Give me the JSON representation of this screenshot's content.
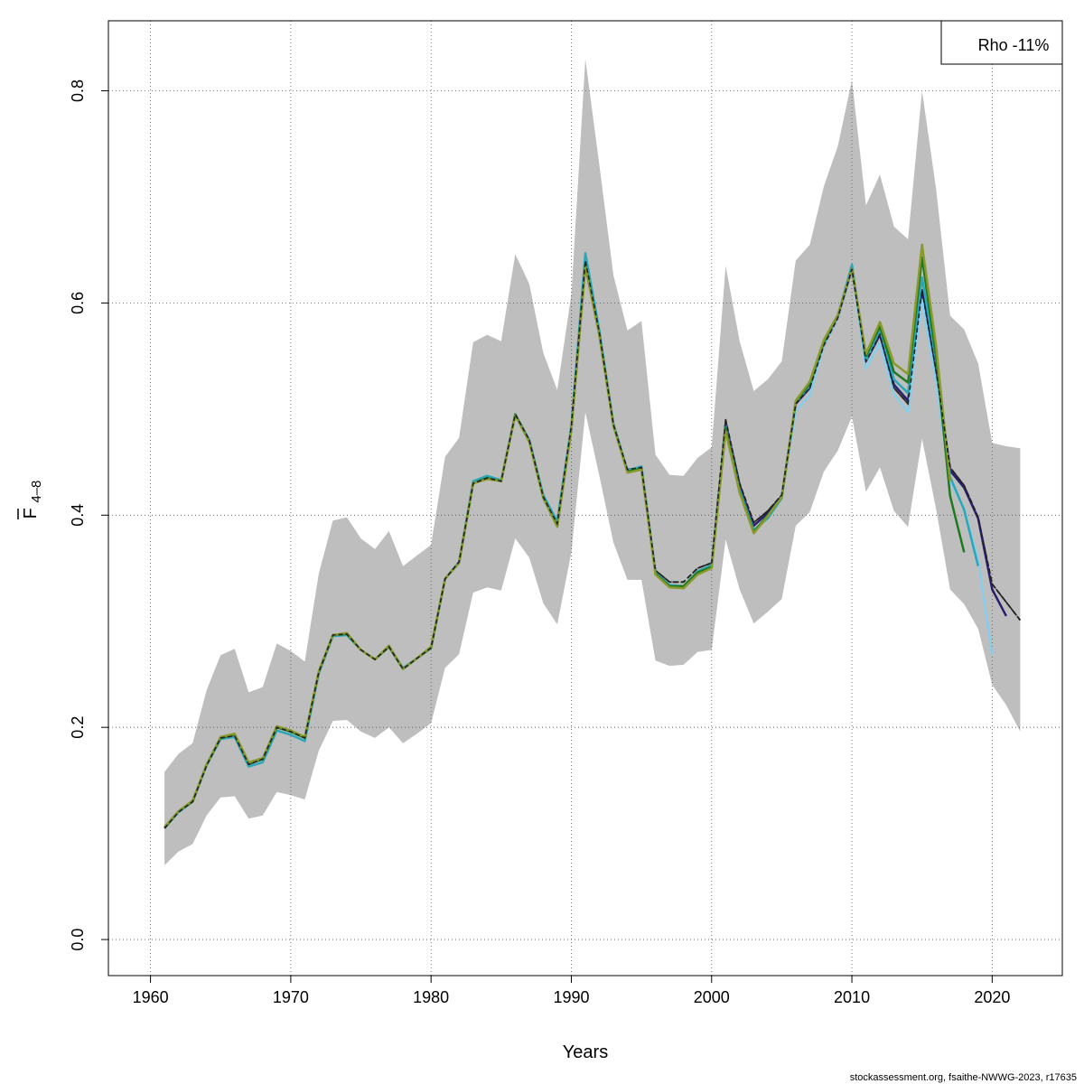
{
  "chart_data": {
    "type": "line",
    "xlabel": "Years",
    "ylabel": {
      "main": "F",
      "sub": "4–8"
    },
    "xlim": [
      1957,
      2025
    ],
    "ylim": [
      -0.034,
      0.866
    ],
    "x_ticks": [
      1960,
      1970,
      1980,
      1990,
      2000,
      2010,
      2020
    ],
    "y_ticks": [
      0.0,
      0.2,
      0.4,
      0.6,
      0.8
    ],
    "x_tick_labels": [
      "1960",
      "1970",
      "1980",
      "1990",
      "2000",
      "2010",
      "2020"
    ],
    "y_tick_labels": [
      "0.0",
      "0.2",
      "0.4",
      "0.6",
      "0.8"
    ],
    "grid": true,
    "legend": {
      "position": "top-right",
      "text": "Rho -11%"
    },
    "footer": "stockassessment.org, fsaithe-NWWG-2023, r17635",
    "band_color": "#bebebe",
    "confidence_band": {
      "x": [
        1961,
        1962,
        1963,
        1964,
        1965,
        1966,
        1967,
        1968,
        1969,
        1970,
        1971,
        1972,
        1973,
        1974,
        1975,
        1976,
        1977,
        1978,
        1979,
        1980,
        1981,
        1982,
        1983,
        1984,
        1985,
        1986,
        1987,
        1988,
        1989,
        1990,
        1991,
        1992,
        1993,
        1994,
        1995,
        1996,
        1997,
        1998,
        1999,
        2000,
        2001,
        2002,
        2003,
        2004,
        2005,
        2006,
        2007,
        2008,
        2009,
        2010,
        2011,
        2012,
        2013,
        2014,
        2015,
        2016,
        2017,
        2018,
        2019,
        2020,
        2021,
        2022
      ],
      "upper": [
        0.158,
        0.175,
        0.185,
        0.235,
        0.268,
        0.274,
        0.233,
        0.238,
        0.279,
        0.272,
        0.262,
        0.345,
        0.395,
        0.398,
        0.378,
        0.368,
        0.385,
        0.352,
        0.362,
        0.372,
        0.455,
        0.473,
        0.563,
        0.57,
        0.564,
        0.646,
        0.618,
        0.553,
        0.518,
        0.608,
        0.83,
        0.73,
        0.626,
        0.574,
        0.583,
        0.457,
        0.438,
        0.437,
        0.454,
        0.464,
        0.635,
        0.564,
        0.517,
        0.528,
        0.545,
        0.64,
        0.655,
        0.71,
        0.748,
        0.81,
        0.692,
        0.721,
        0.672,
        0.66,
        0.8,
        0.708,
        0.588,
        0.575,
        0.543,
        0.468,
        0.465,
        0.463
      ],
      "lower": [
        0.07,
        0.083,
        0.09,
        0.117,
        0.134,
        0.135,
        0.114,
        0.117,
        0.139,
        0.136,
        0.132,
        0.178,
        0.206,
        0.207,
        0.196,
        0.19,
        0.2,
        0.185,
        0.194,
        0.204,
        0.256,
        0.269,
        0.327,
        0.332,
        0.329,
        0.378,
        0.36,
        0.317,
        0.297,
        0.365,
        0.497,
        0.437,
        0.374,
        0.339,
        0.339,
        0.263,
        0.258,
        0.259,
        0.271,
        0.273,
        0.377,
        0.33,
        0.298,
        0.309,
        0.321,
        0.39,
        0.403,
        0.441,
        0.461,
        0.493,
        0.422,
        0.445,
        0.404,
        0.389,
        0.472,
        0.406,
        0.33,
        0.316,
        0.293,
        0.24,
        0.221,
        0.196
      ]
    },
    "series": [
      {
        "color": "#222222",
        "dashed": true,
        "x": [
          1961,
          1962,
          1963,
          1964,
          1965,
          1966,
          1967,
          1968,
          1969,
          1970,
          1971,
          1972,
          1973,
          1974,
          1975,
          1976,
          1977,
          1978,
          1979,
          1980,
          1981,
          1982,
          1983,
          1984,
          1985,
          1986,
          1987,
          1988,
          1989,
          1990,
          1991,
          1992,
          1993,
          1994,
          1995,
          1996,
          1997,
          1998,
          1999,
          2000,
          2001,
          2002,
          2003,
          2004,
          2005,
          2006,
          2007,
          2008,
          2009,
          2010,
          2011,
          2012,
          2013,
          2014,
          2015,
          2016,
          2017,
          2018,
          2019,
          2020,
          2021,
          2022
        ],
        "values": [
          0.105,
          0.12,
          0.13,
          0.164,
          0.19,
          0.192,
          0.165,
          0.17,
          0.2,
          0.196,
          0.19,
          0.252,
          0.287,
          0.288,
          0.273,
          0.264,
          0.276,
          0.255,
          0.265,
          0.275,
          0.34,
          0.356,
          0.43,
          0.435,
          0.432,
          0.495,
          0.471,
          0.417,
          0.392,
          0.484,
          0.64,
          0.572,
          0.485,
          0.443,
          0.445,
          0.348,
          0.337,
          0.337,
          0.35,
          0.355,
          0.49,
          0.43,
          0.393,
          0.404,
          0.419,
          0.505,
          0.52,
          0.56,
          0.586,
          0.632,
          0.545,
          0.57,
          0.52,
          0.505,
          0.612,
          0.536,
          0.445,
          0.428,
          0.398,
          0.335,
          0.318,
          0.301
        ]
      },
      {
        "color": "#2a1f6e",
        "dashed": false,
        "x": [
          2001,
          2002,
          2003,
          2004,
          2005,
          2006,
          2007,
          2008,
          2009,
          2010,
          2011,
          2012,
          2013,
          2014,
          2015,
          2016,
          2017,
          2018,
          2019,
          2020,
          2021
        ],
        "values": [
          0.487,
          0.428,
          0.39,
          0.402,
          0.418,
          0.505,
          0.52,
          0.56,
          0.586,
          0.632,
          0.545,
          0.57,
          0.523,
          0.508,
          0.612,
          0.538,
          0.442,
          0.426,
          0.397,
          0.33,
          0.305
        ]
      },
      {
        "color": "#87ceeb",
        "dashed": false,
        "x": [
          2005,
          2006,
          2007,
          2008,
          2009,
          2010,
          2011,
          2012,
          2013,
          2014,
          2015,
          2016,
          2017,
          2018,
          2019,
          2020
        ],
        "values": [
          0.419,
          0.498,
          0.513,
          0.56,
          0.586,
          0.632,
          0.538,
          0.562,
          0.514,
          0.497,
          0.603,
          0.525,
          0.432,
          0.406,
          0.358,
          0.268
        ]
      },
      {
        "color": "#2aa7b8",
        "dashed": false,
        "x": [
          1961,
          1962,
          1963,
          1964,
          1965,
          1966,
          1967,
          1968,
          1969,
          1970,
          1971,
          1972,
          1973,
          1974,
          1975,
          1976,
          1977,
          1978,
          1979,
          1980,
          1981,
          1982,
          1983,
          1984,
          1985,
          1986,
          1987,
          1988,
          1989,
          1990,
          1991,
          1992,
          1993,
          1994,
          1995,
          1996,
          1997,
          1998,
          1999,
          2000,
          2001,
          2002,
          2003,
          2004,
          2005,
          2006,
          2007,
          2008,
          2009,
          2010,
          2011,
          2012,
          2013,
          2014,
          2015,
          2016,
          2017,
          2018,
          2019
        ],
        "values": [
          0.105,
          0.12,
          0.13,
          0.164,
          0.189,
          0.191,
          0.163,
          0.167,
          0.197,
          0.193,
          0.187,
          0.251,
          0.286,
          0.287,
          0.273,
          0.264,
          0.276,
          0.256,
          0.265,
          0.275,
          0.34,
          0.356,
          0.432,
          0.437,
          0.433,
          0.495,
          0.471,
          0.419,
          0.394,
          0.484,
          0.647,
          0.574,
          0.486,
          0.442,
          0.446,
          0.346,
          0.334,
          0.333,
          0.347,
          0.353,
          0.484,
          0.424,
          0.386,
          0.397,
          0.416,
          0.506,
          0.522,
          0.562,
          0.588,
          0.636,
          0.545,
          0.575,
          0.528,
          0.515,
          0.624,
          0.545,
          0.436,
          0.405,
          0.352
        ]
      },
      {
        "color": "#1f7a1f",
        "dashed": false,
        "x": [
          1961,
          1962,
          1963,
          1964,
          1965,
          1966,
          1967,
          1968,
          1969,
          1970,
          1971,
          1972,
          1973,
          1974,
          1975,
          1976,
          1977,
          1978,
          1979,
          1980,
          1981,
          1982,
          1983,
          1984,
          1985,
          1986,
          1987,
          1988,
          1989,
          1990,
          1991,
          1992,
          1993,
          1994,
          1995,
          1996,
          1997,
          1998,
          1999,
          2000,
          2001,
          2002,
          2003,
          2004,
          2005,
          2006,
          2007,
          2008,
          2009,
          2010,
          2011,
          2012,
          2013,
          2014,
          2015,
          2016,
          2017,
          2018
        ],
        "values": [
          0.105,
          0.121,
          0.13,
          0.165,
          0.19,
          0.193,
          0.166,
          0.17,
          0.2,
          0.196,
          0.19,
          0.252,
          0.287,
          0.288,
          0.273,
          0.264,
          0.276,
          0.255,
          0.265,
          0.275,
          0.34,
          0.355,
          0.43,
          0.435,
          0.432,
          0.495,
          0.47,
          0.417,
          0.39,
          0.481,
          0.636,
          0.57,
          0.485,
          0.441,
          0.444,
          0.345,
          0.333,
          0.333,
          0.346,
          0.351,
          0.482,
          0.422,
          0.384,
          0.4,
          0.417,
          0.507,
          0.524,
          0.563,
          0.588,
          0.632,
          0.55,
          0.578,
          0.535,
          0.525,
          0.643,
          0.55,
          0.418,
          0.365
        ]
      },
      {
        "color": "#8a9a2a",
        "dashed": false,
        "x": [
          1961,
          1962,
          1963,
          1964,
          1965,
          1966,
          1967,
          1968,
          1969,
          1970,
          1971,
          1972,
          1973,
          1974,
          1975,
          1976,
          1977,
          1978,
          1979,
          1980,
          1981,
          1982,
          1983,
          1984,
          1985,
          1986,
          1987,
          1988,
          1989,
          1990,
          1991,
          1992,
          1993,
          1994,
          1995,
          1996,
          1997,
          1998,
          1999,
          2000,
          2001,
          2002,
          2003,
          2004,
          2005,
          2006,
          2007,
          2008,
          2009,
          2010,
          2011,
          2012,
          2013,
          2014,
          2015,
          2016,
          2017
        ],
        "values": [
          0.106,
          0.121,
          0.131,
          0.165,
          0.191,
          0.194,
          0.167,
          0.171,
          0.201,
          0.197,
          0.191,
          0.253,
          0.287,
          0.289,
          0.273,
          0.264,
          0.277,
          0.255,
          0.265,
          0.276,
          0.34,
          0.355,
          0.43,
          0.434,
          0.432,
          0.494,
          0.469,
          0.416,
          0.389,
          0.48,
          0.634,
          0.569,
          0.484,
          0.44,
          0.443,
          0.344,
          0.332,
          0.331,
          0.344,
          0.35,
          0.479,
          0.421,
          0.383,
          0.399,
          0.417,
          0.508,
          0.526,
          0.565,
          0.589,
          0.632,
          0.552,
          0.582,
          0.543,
          0.533,
          0.655,
          0.56,
          0.432
        ]
      }
    ]
  }
}
